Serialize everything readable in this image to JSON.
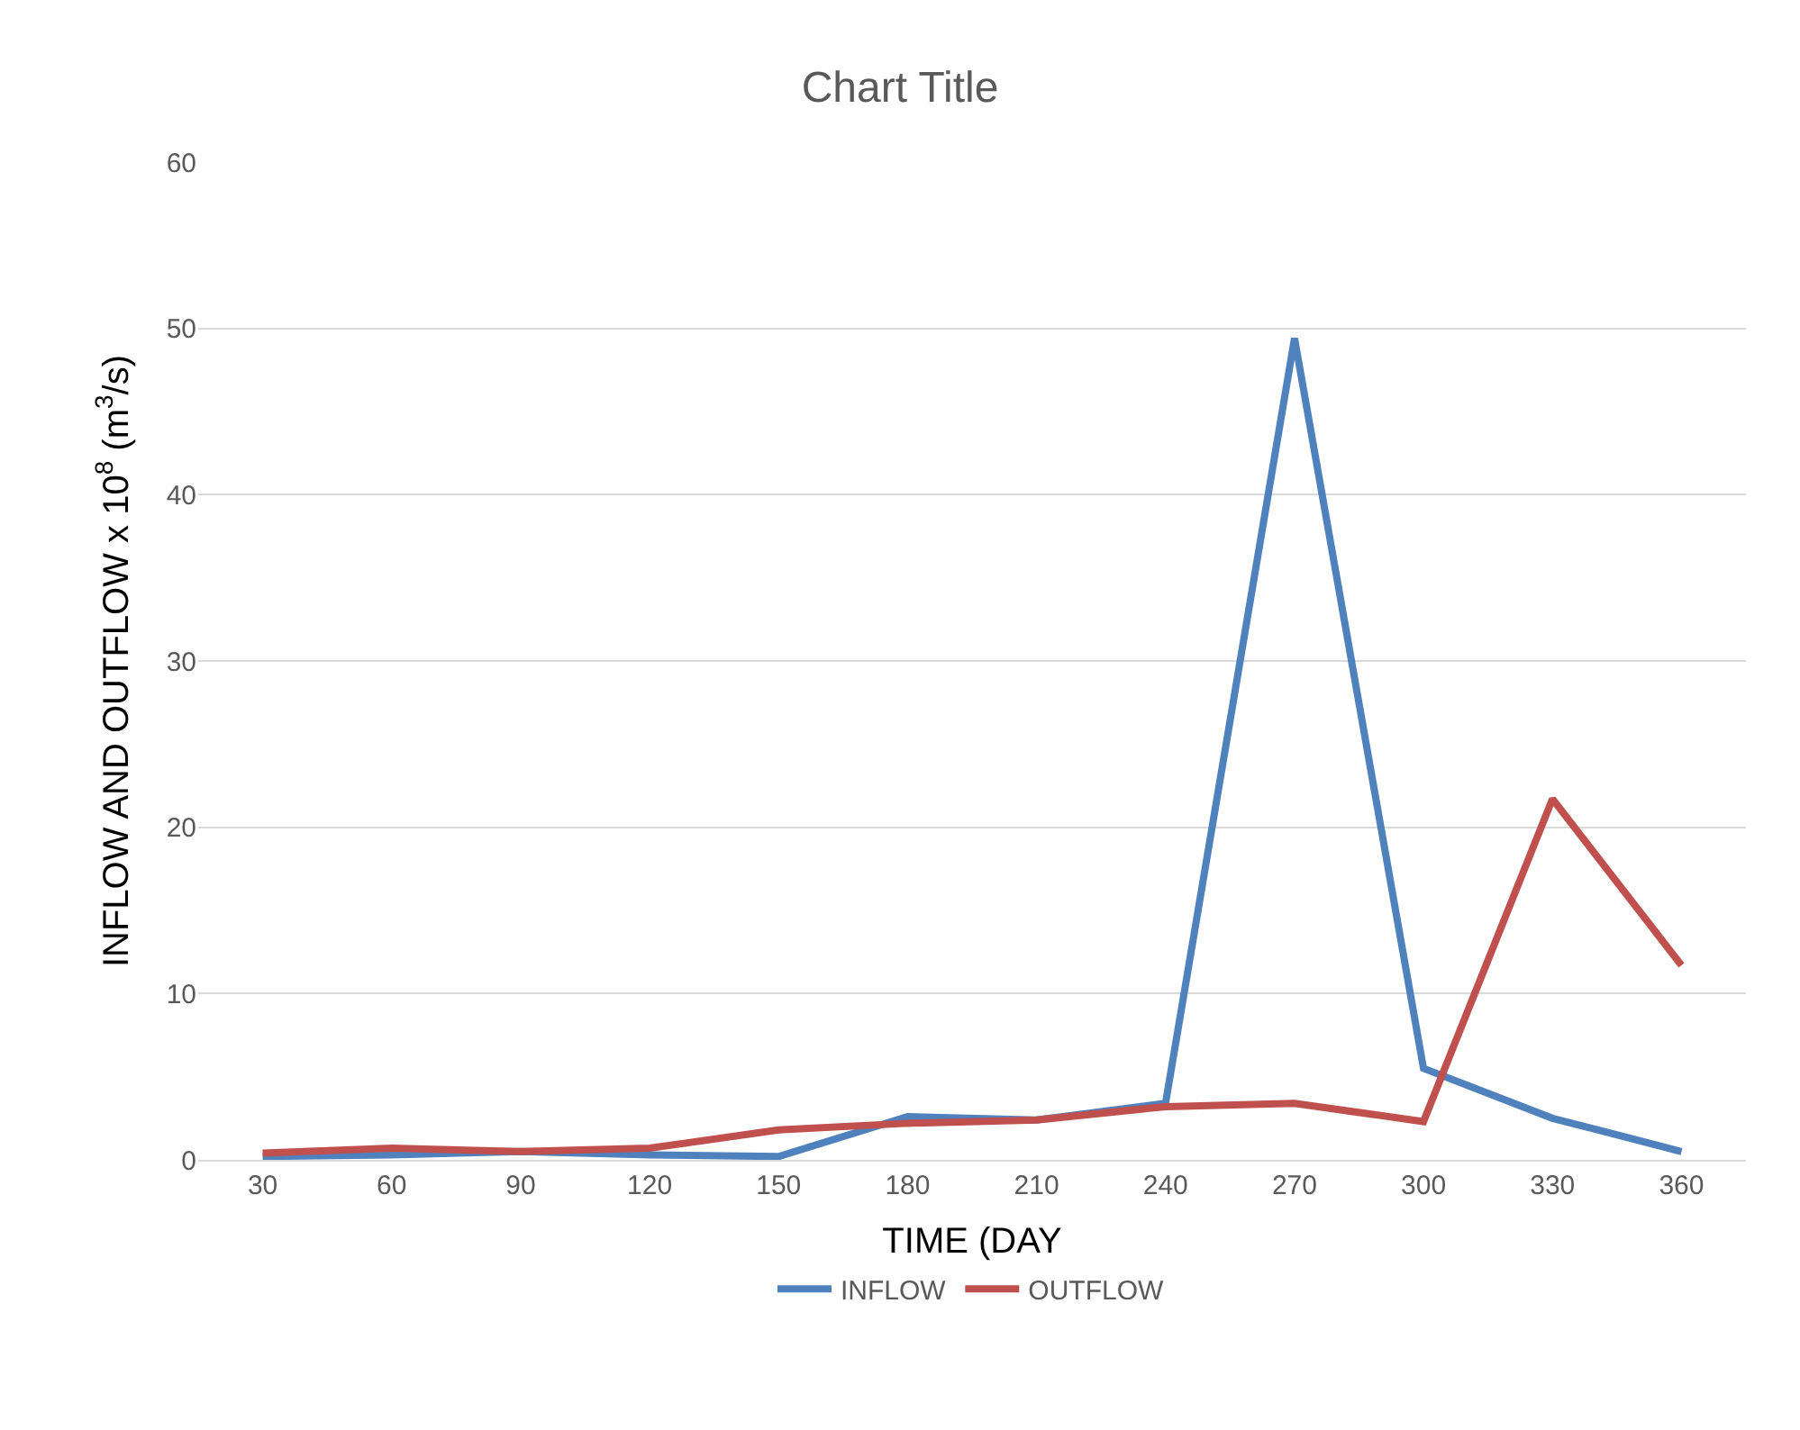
{
  "chart_data": {
    "type": "line",
    "title": "Chart Title",
    "xlabel": "TIME (DAY",
    "ylabel": "INFLOW AND OUTFLOW x 10$^{8}$ (m$^{3}$/s)",
    "categories": [
      "30",
      "60",
      "90",
      "120",
      "150",
      "180",
      "210",
      "240",
      "270",
      "300",
      "330",
      "360"
    ],
    "series": [
      {
        "name": "INFLOW",
        "color": "#4f81bd",
        "values": [
          0.2,
          0.3,
          0.5,
          0.3,
          0.2,
          2.6,
          2.4,
          3.4,
          49.4,
          5.5,
          2.5,
          0.5
        ]
      },
      {
        "name": "OUTFLOW",
        "color": "#c0504d",
        "values": [
          0.4,
          0.7,
          0.5,
          0.7,
          1.8,
          2.2,
          2.4,
          3.2,
          3.4,
          2.3,
          21.7,
          11.7
        ]
      }
    ],
    "ylim": [
      0,
      60
    ],
    "yticks": [
      0,
      10,
      20,
      30,
      40,
      50,
      60
    ],
    "grid": "y",
    "legend": "bottom",
    "marker": "none",
    "line_style": "solid"
  }
}
